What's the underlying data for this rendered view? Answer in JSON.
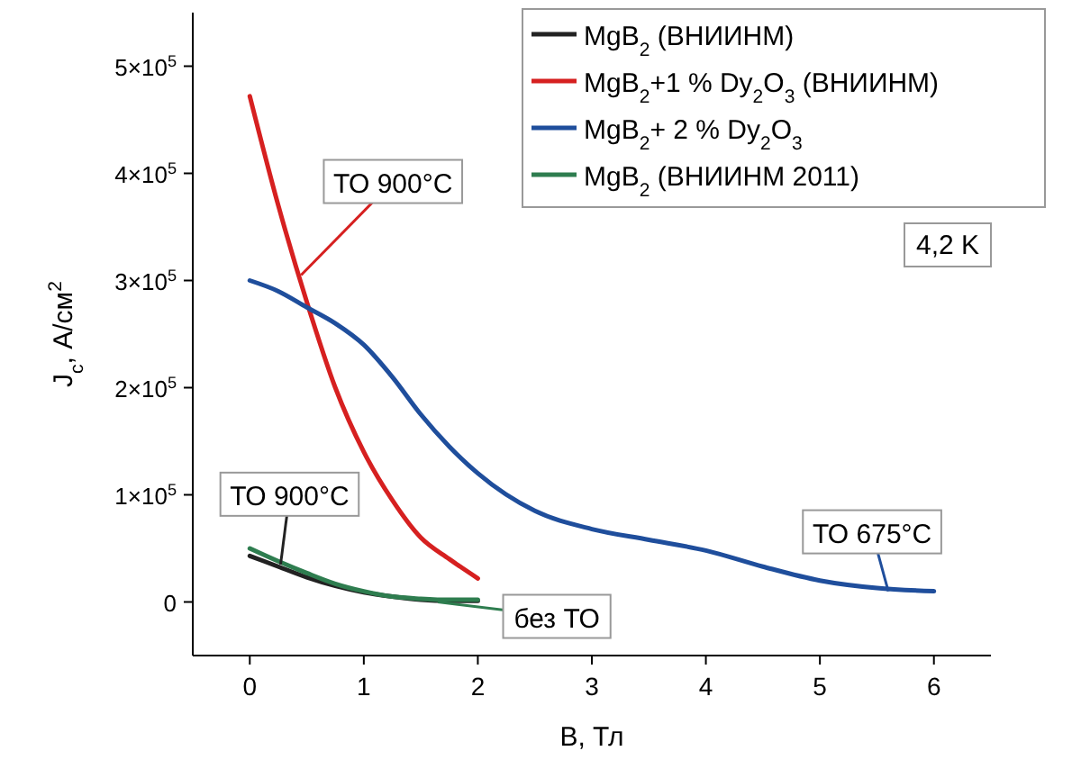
{
  "chart_data": {
    "type": "line",
    "xlabel": "B, Тл",
    "ylabel": "J$_{c}$, А/см$^{2}$",
    "xlim": [
      -0.5,
      6.5
    ],
    "xticks": [
      0,
      1,
      2,
      3,
      4,
      5,
      6
    ],
    "ylim": [
      -50000,
      550000
    ],
    "yticks": [
      {
        "value": 0,
        "label": "0"
      },
      {
        "value": 100000,
        "label": "1×10$^{5}$"
      },
      {
        "value": 200000,
        "label": "2×10$^{5}$"
      },
      {
        "value": 300000,
        "label": "3×10$^{5}$"
      },
      {
        "value": 400000,
        "label": "4×10$^{5}$"
      },
      {
        "value": 500000,
        "label": "5×10$^{5}$"
      }
    ],
    "legend": "top right",
    "grid": false,
    "line_style": "solid",
    "marker": "none",
    "series": [
      {
        "name": "MgB$_{2}$ (ВНИИНМ)",
        "color": "#222222",
        "x": [
          0,
          0.25,
          0.5,
          0.75,
          1,
          1.25,
          1.5,
          1.75,
          2
        ],
        "values": [
          43000,
          33000,
          23000,
          15000,
          9000,
          5000,
          2000,
          1000,
          1000
        ]
      },
      {
        "name": "MgB$_{2}$+1 % Dy$_{2}$O$_{3}$ (ВНИИНМ)",
        "color": "#d62020",
        "x": [
          0,
          0.25,
          0.5,
          0.75,
          1,
          1.25,
          1.5,
          1.75,
          2
        ],
        "values": [
          472000,
          370000,
          280000,
          200000,
          140000,
          95000,
          60000,
          40000,
          22000
        ]
      },
      {
        "name": "MgB$_{2}$+ 2 % Dy$_{2}$O$_{3}$",
        "color": "#1f4e9c",
        "x": [
          0,
          0.25,
          0.5,
          0.75,
          1,
          1.25,
          1.5,
          1.75,
          2,
          2.5,
          3,
          3.5,
          4,
          4.5,
          5,
          5.5,
          6
        ],
        "values": [
          300000,
          290000,
          275000,
          260000,
          240000,
          210000,
          175000,
          145000,
          120000,
          85000,
          68000,
          58000,
          48000,
          33000,
          20000,
          13000,
          10000
        ]
      },
      {
        "name": "MgB$_{2}$ (ВНИИНМ 2011)",
        "color": "#2e7d4f",
        "x": [
          0,
          0.25,
          0.5,
          0.75,
          1,
          1.25,
          1.5,
          1.75,
          2
        ],
        "values": [
          50000,
          38000,
          27000,
          17000,
          10000,
          5000,
          3000,
          2000,
          2000
        ]
      }
    ],
    "annotations": [
      {
        "text": "ТО 900°C",
        "x": 0.45,
        "y": 305000
      },
      {
        "text": "ТО 900°C",
        "x": 0.27,
        "y": 35000
      },
      {
        "text": "без ТО",
        "x": 1.65,
        "y": 0
      },
      {
        "text": "ТО 675°C",
        "x": 5.6,
        "y": 10000
      },
      "4,2 K"
    ]
  }
}
